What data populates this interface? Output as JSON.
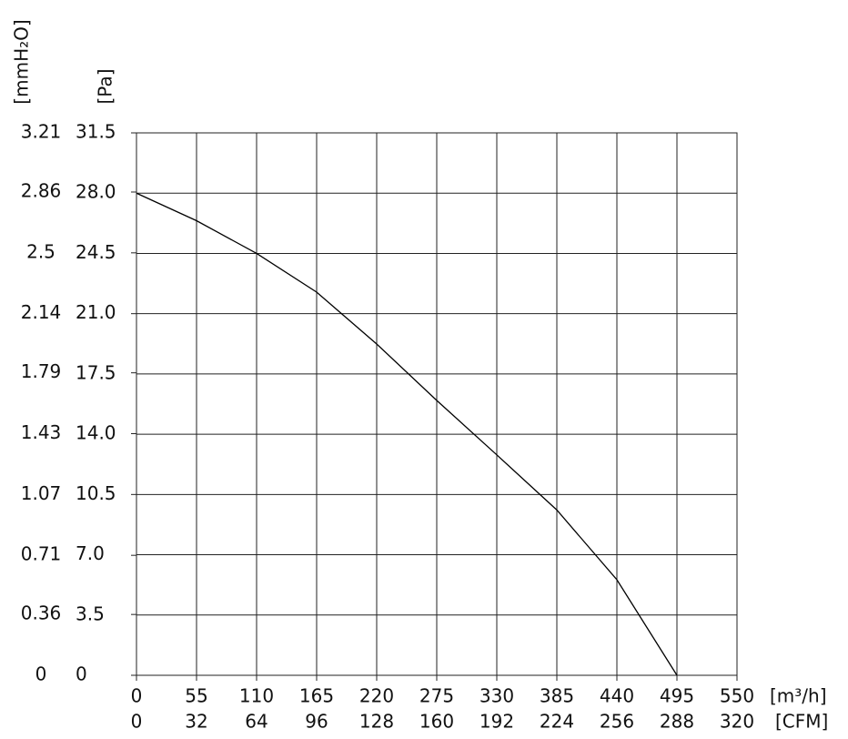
{
  "chart_data": {
    "type": "line",
    "y_label": "[Pa]",
    "y2_label": "[mmH₂O]",
    "x_label": "[m³/h]",
    "x2_label": "[CFM]",
    "x": [
      0,
      55,
      110,
      165,
      220,
      275,
      330,
      385,
      440,
      495
    ],
    "series": [
      {
        "color": "#000000",
        "values": [
          28.0,
          26.4,
          24.5,
          22.25,
          19.24,
          15.96,
          12.8,
          9.6,
          5.55,
          0
        ]
      }
    ],
    "xlim": [
      0,
      550
    ],
    "xticks": [
      0,
      55,
      110,
      165,
      220,
      275,
      330,
      385,
      440,
      495,
      550
    ],
    "x2lim": [
      0,
      320
    ],
    "x2ticks": [
      0,
      32,
      64,
      96,
      128,
      160,
      192,
      224,
      256,
      288,
      320
    ],
    "ylim": [
      0,
      31.5
    ],
    "yticks": [
      0,
      3.5,
      {
        "value": 7,
        "label": "7.0"
      },
      10.5,
      {
        "value": 14,
        "label": "14.0"
      },
      17.5,
      {
        "value": 21,
        "label": "21.0"
      },
      24.5,
      {
        "value": 28,
        "label": "28.0"
      },
      31.5
    ],
    "y2lim": [
      0,
      3.21
    ],
    "y2ticks": [
      0,
      0.36,
      0.71,
      1.07,
      1.43,
      1.79,
      2.14,
      2.5,
      2.86,
      3.21
    ],
    "grid": true
  }
}
